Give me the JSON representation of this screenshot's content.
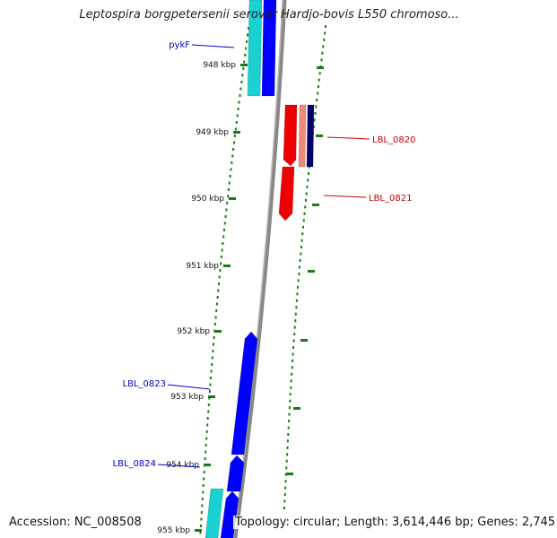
{
  "title": "Leptospira borgpetersenii serovar Hardjo-bovis L550 chromoso...",
  "accession": "Accession: NC_008508",
  "topology": "Topology: circular; Length: 3,614,446 bp; Genes: 2,745",
  "colors": {
    "forward_gene": "#0000ff",
    "forward_gene_alt": "#1ad1d1",
    "reverse_gene": "#ee0000",
    "reverse_gene_alt": "#f08a78",
    "reverse_gene_dark": "#000066",
    "tick": "#1a7a1a",
    "backbone": "#888888",
    "label_forward": "#0000cc",
    "label_reverse": "#cc0000"
  },
  "ticks": [
    "948 kbp",
    "949 kbp",
    "950 kbp",
    "951 kbp",
    "952 kbp",
    "953 kbp",
    "954 kbp",
    "955 kbp"
  ],
  "gene_labels": [
    {
      "name": "pykF",
      "strand": "forward"
    },
    {
      "name": "LBL_0820",
      "strand": "reverse"
    },
    {
      "name": "LBL_0821",
      "strand": "reverse"
    },
    {
      "name": "LBL_0823",
      "strand": "forward"
    },
    {
      "name": "LBL_0824",
      "strand": "forward"
    }
  ]
}
